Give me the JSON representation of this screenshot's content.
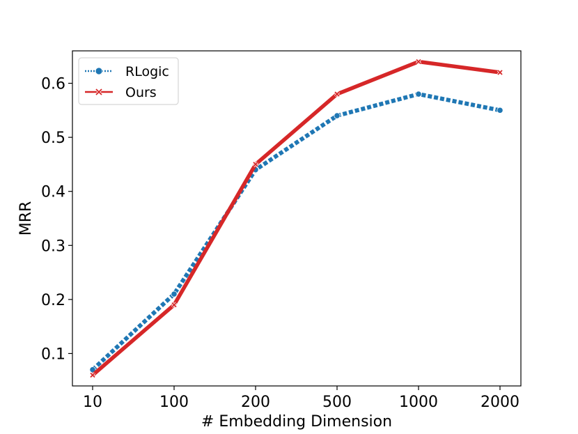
{
  "chart_data": {
    "type": "line",
    "title": "",
    "xlabel": "# Embedding Dimension",
    "ylabel": "MRR",
    "categories": [
      "10",
      "100",
      "200",
      "500",
      "1000",
      "2000"
    ],
    "yticks": [
      "0.1",
      "0.2",
      "0.3",
      "0.4",
      "0.5",
      "0.6"
    ],
    "ylim": [
      0.04,
      0.66
    ],
    "grid": false,
    "legend_position": "top-left",
    "series": [
      {
        "name": "RLogic",
        "color": "#1f77b4",
        "linestyle": "dotted",
        "marker": "circle",
        "values": [
          0.07,
          0.21,
          0.44,
          0.54,
          0.58,
          0.55
        ]
      },
      {
        "name": "Ours",
        "color": "#d62728",
        "linestyle": "solid",
        "marker": "x",
        "values": [
          0.06,
          0.19,
          0.45,
          0.58,
          0.64,
          0.62
        ]
      }
    ]
  }
}
